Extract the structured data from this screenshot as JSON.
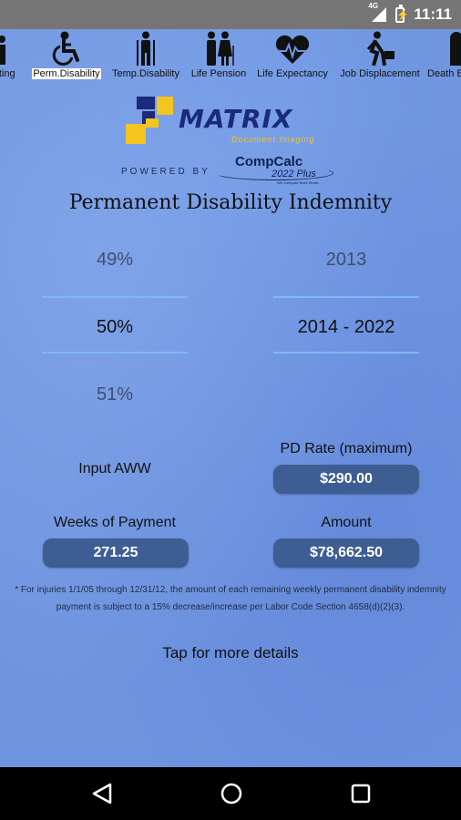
{
  "status_bar": {
    "network": "4G",
    "time": "11:11"
  },
  "tabs": [
    {
      "label": "cting",
      "icon": "person-icon"
    },
    {
      "label": "Perm.Disability",
      "icon": "wheelchair-icon",
      "active": true
    },
    {
      "label": "Temp.Disability",
      "icon": "crutch-person-icon"
    },
    {
      "label": "Life Pension",
      "icon": "elderly-couple-icon"
    },
    {
      "label": "Life Expectancy",
      "icon": "heartbeat-icon"
    },
    {
      "label": "Job Displacement",
      "icon": "walking-briefcase-icon"
    },
    {
      "label": "Death B",
      "icon": "tombstone-icon"
    }
  ],
  "branding": {
    "logo_name": "MATRIX",
    "logo_sub": "Document Imaging",
    "powered_by": "POWERED BY",
    "compcalc_name": "CompCalc",
    "compcalc_version": "2022 Plus",
    "compcalc_tagline": "We Compute Work Smart."
  },
  "title": "Permanent Disability Indemnity",
  "percent_picker": {
    "prev": "49%",
    "current": "50%",
    "next": "51%"
  },
  "year_picker": {
    "prev": "2013",
    "current": "2014 - 2022",
    "next": ""
  },
  "fields": {
    "input_aww_label": "Input AWW",
    "pd_rate_label": "PD Rate (maximum)",
    "pd_rate_value": "$290.00",
    "weeks_label": "Weeks of Payment",
    "weeks_value": "271.25",
    "amount_label": "Amount",
    "amount_value": "$78,662.50"
  },
  "footnote": "* For injuries 1/1/05 through 12/31/12, the amount of each remaining weekly permanent disability indemnity payment is subject to a 15% decrease/increase per Labor Code Section 4658(d)(2)(3).",
  "details_link": "Tap for more details",
  "colors": {
    "background": "#6f95e0",
    "pill": "#3e5d93",
    "picker_line": "#7fb8f3",
    "logo_navy": "#1a2a7c",
    "logo_yellow": "#f3c51d"
  }
}
